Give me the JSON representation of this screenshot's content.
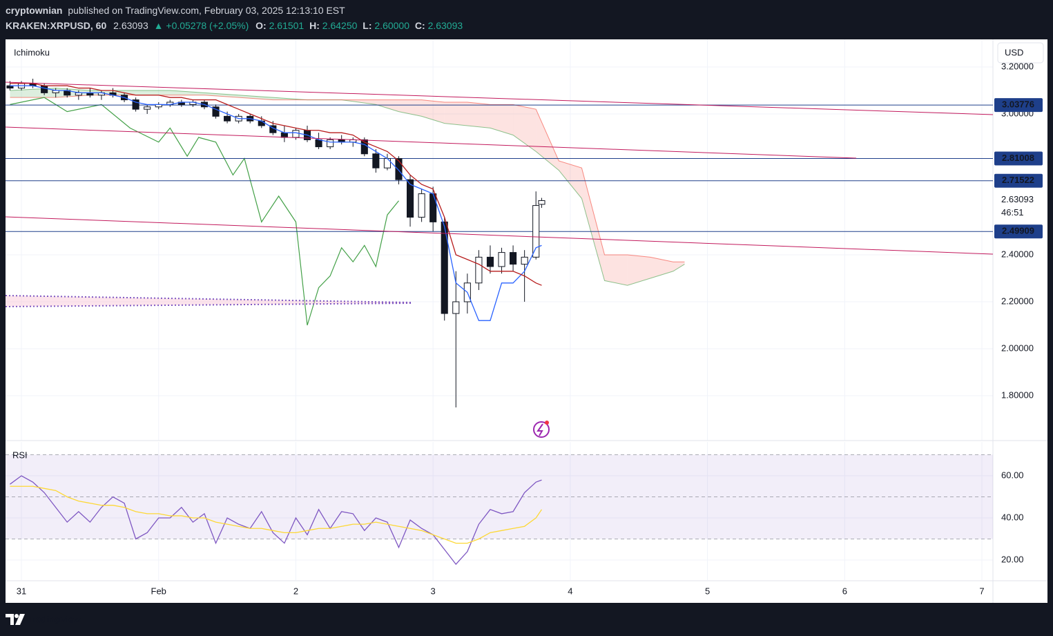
{
  "header": {
    "author": "cryptownian",
    "published": "published on TradingView.com, February 03, 2025 12:13:10 EST",
    "symbol": "KRAKEN:XRPUSD, 60",
    "last": "2.63093",
    "change": "▲ +0.05278 (+2.05%)",
    "o_label": "O:",
    "o": "2.61501",
    "h_label": "H:",
    "h": "2.64250",
    "l_label": "L:",
    "l": "2.60000",
    "c_label": "C:",
    "c": "2.63093"
  },
  "chart_data": [
    {
      "type": "candlestick",
      "title": "Ichimoku",
      "currency": "USD",
      "countdown": "46:51",
      "up_color": "#ffffff",
      "down_color": "#131722",
      "x": [
        -2,
        0,
        2,
        4,
        6,
        8,
        10,
        12,
        14,
        16,
        18,
        20,
        22,
        24,
        26,
        28,
        30,
        32,
        34,
        36,
        38,
        40,
        42,
        44,
        46,
        48,
        50,
        52,
        54,
        56,
        58,
        60,
        62,
        64,
        66,
        68,
        70,
        72,
        74,
        76,
        78,
        80,
        82,
        84,
        86,
        88,
        90,
        91
      ],
      "open": [
        3.12,
        3.11,
        3.13,
        3.12,
        3.09,
        3.1,
        3.08,
        3.09,
        3.08,
        3.09,
        3.08,
        3.06,
        3.02,
        3.03,
        3.04,
        3.05,
        3.04,
        3.05,
        3.03,
        2.99,
        2.97,
        2.99,
        2.97,
        2.95,
        2.92,
        2.9,
        2.93,
        2.89,
        2.86,
        2.89,
        2.88,
        2.89,
        2.83,
        2.77,
        2.81,
        2.72,
        2.56,
        2.66,
        2.54,
        2.15,
        2.2,
        2.28,
        2.39,
        2.35,
        2.41,
        2.36,
        2.39,
        2.61501
      ],
      "high": [
        3.14,
        3.14,
        3.15,
        3.13,
        3.11,
        3.11,
        3.1,
        3.11,
        3.1,
        3.11,
        3.09,
        3.07,
        3.04,
        3.05,
        3.06,
        3.06,
        3.06,
        3.06,
        3.04,
        3.01,
        3.0,
        3.0,
        2.99,
        2.97,
        2.95,
        2.94,
        2.95,
        2.92,
        2.9,
        2.91,
        2.9,
        2.9,
        2.85,
        2.83,
        2.82,
        2.74,
        2.68,
        2.69,
        2.56,
        2.33,
        2.32,
        2.42,
        2.44,
        2.43,
        2.44,
        2.42,
        2.67,
        2.6425
      ],
      "low": [
        3.1,
        3.1,
        3.11,
        3.08,
        3.07,
        3.07,
        3.06,
        3.07,
        3.06,
        3.07,
        3.05,
        3.01,
        3.0,
        3.02,
        3.03,
        3.03,
        3.03,
        3.02,
        2.98,
        2.96,
        2.96,
        2.96,
        2.94,
        2.91,
        2.88,
        2.89,
        2.88,
        2.85,
        2.85,
        2.87,
        2.86,
        2.82,
        2.75,
        2.76,
        2.7,
        2.52,
        2.54,
        2.5,
        2.12,
        1.75,
        2.15,
        2.25,
        2.32,
        2.32,
        2.33,
        2.2,
        2.38,
        2.6
      ],
      "close": [
        3.11,
        3.13,
        3.12,
        3.09,
        3.1,
        3.08,
        3.09,
        3.08,
        3.09,
        3.08,
        3.06,
        3.02,
        3.03,
        3.04,
        3.05,
        3.04,
        3.05,
        3.03,
        2.99,
        2.97,
        2.99,
        2.97,
        2.95,
        2.92,
        2.9,
        2.93,
        2.89,
        2.86,
        2.89,
        2.88,
        2.89,
        2.83,
        2.77,
        2.81,
        2.72,
        2.56,
        2.66,
        2.54,
        2.15,
        2.2,
        2.28,
        2.39,
        2.35,
        2.41,
        2.36,
        2.39,
        2.61,
        2.63093
      ],
      "lines": [
        {
          "color": "#2962ff",
          "values": [
            3.12,
            3.12,
            3.12,
            3.11,
            3.1,
            3.1,
            3.09,
            3.09,
            3.09,
            3.08,
            3.07,
            3.05,
            3.04,
            3.04,
            3.04,
            3.05,
            3.05,
            3.04,
            3.02,
            3.0,
            2.98,
            2.98,
            2.97,
            2.94,
            2.92,
            2.92,
            2.91,
            2.89,
            2.88,
            2.88,
            2.88,
            2.87,
            2.84,
            2.81,
            2.76,
            2.7,
            2.68,
            2.66,
            2.52,
            2.28,
            2.24,
            2.12,
            2.12,
            2.28,
            2.28,
            2.33,
            2.43,
            2.44
          ]
        },
        {
          "color": "#b71c1c",
          "values": [
            3.13,
            3.13,
            3.13,
            3.12,
            3.12,
            3.12,
            3.11,
            3.11,
            3.1,
            3.1,
            3.09,
            3.08,
            3.08,
            3.08,
            3.07,
            3.07,
            3.06,
            3.06,
            3.06,
            3.04,
            3.02,
            3.0,
            2.98,
            2.96,
            2.95,
            2.94,
            2.93,
            2.93,
            2.92,
            2.92,
            2.91,
            2.88,
            2.86,
            2.84,
            2.8,
            2.74,
            2.7,
            2.68,
            2.56,
            2.4,
            2.38,
            2.36,
            2.33,
            2.33,
            2.33,
            2.31,
            2.28,
            2.27
          ]
        }
      ],
      "lagging": {
        "color": "#43a047",
        "x": [
          -2,
          4,
          8,
          14,
          19,
          24,
          26,
          29,
          31,
          34,
          37,
          39,
          42,
          45,
          48,
          50,
          52,
          54,
          56,
          58,
          60,
          62,
          64,
          66
        ],
        "values": [
          3.04,
          3.07,
          3.01,
          3.04,
          2.94,
          2.88,
          2.94,
          2.82,
          2.9,
          2.88,
          2.74,
          2.81,
          2.54,
          2.65,
          2.54,
          2.1,
          2.26,
          2.31,
          2.43,
          2.37,
          2.44,
          2.35,
          2.57,
          2.63
        ]
      },
      "cloud": {
        "up_color": "#43a047",
        "down_color": "#f44336",
        "x": [
          -2,
          6,
          12,
          20,
          26,
          32,
          38,
          44,
          50,
          56,
          62,
          66,
          70,
          74,
          78,
          82,
          86,
          90,
          94,
          98,
          102,
          106,
          110,
          114,
          116
        ],
        "span_a": [
          3.1,
          3.11,
          3.1,
          3.1,
          3.1,
          3.09,
          3.08,
          3.07,
          3.06,
          3.06,
          3.04,
          3.01,
          2.99,
          2.96,
          2.95,
          2.94,
          2.91,
          2.84,
          2.76,
          2.64,
          2.29,
          2.27,
          2.3,
          2.33,
          2.36
        ],
        "span_b": [
          3.07,
          3.07,
          3.08,
          3.08,
          3.08,
          3.08,
          3.07,
          3.06,
          3.06,
          3.06,
          3.06,
          3.06,
          3.06,
          3.05,
          3.05,
          3.04,
          3.04,
          3.02,
          2.8,
          2.77,
          2.4,
          2.4,
          2.39,
          2.37,
          2.37
        ]
      },
      "levels": [
        3.03776,
        2.81008,
        2.71522,
        2.49909
      ],
      "level_color": "#1e3f8a",
      "xlim": [
        -2.78,
        169.93
      ],
      "ylim": [
        1.6088,
        3.3176
      ],
      "yticks": [
        {
          "value": 3.2,
          "label": "3.20000"
        },
        {
          "value": 3.0,
          "label": "3.00000"
        },
        {
          "value": 2.4,
          "label": "2.40000"
        },
        {
          "value": 2.2,
          "label": "2.20000"
        },
        {
          "value": 2.0,
          "label": "2.00000"
        },
        {
          "value": 1.8,
          "label": "1.80000"
        }
      ]
    },
    {
      "type": "line",
      "title": "RSI",
      "x": [
        -2,
        0,
        2,
        4,
        6,
        8,
        10,
        12,
        14,
        16,
        18,
        20,
        22,
        24,
        26,
        28,
        30,
        32,
        34,
        36,
        38,
        40,
        42,
        44,
        46,
        48,
        50,
        52,
        54,
        56,
        58,
        60,
        62,
        64,
        66,
        68,
        70,
        72,
        74,
        76,
        78,
        80,
        82,
        84,
        86,
        88,
        90,
        91
      ],
      "series": [
        {
          "color": "#7e57c2",
          "values": [
            56,
            60,
            57,
            52,
            45,
            38,
            43,
            38,
            45,
            50,
            47,
            30,
            33,
            40,
            40,
            45,
            38,
            42,
            28,
            40,
            37,
            35,
            43,
            33,
            28,
            40,
            32,
            44,
            35,
            43,
            42,
            34,
            40,
            38,
            26,
            39,
            35,
            32,
            25,
            18,
            24,
            37,
            44,
            42,
            43,
            52,
            57,
            58
          ]
        },
        {
          "color": "#fdd835",
          "values": [
            55,
            55,
            55,
            54,
            53,
            50,
            48,
            47,
            46,
            46,
            45,
            43,
            42,
            42,
            41,
            41,
            40,
            40,
            38,
            37,
            36,
            35,
            35,
            34,
            33,
            33,
            34,
            35,
            35,
            36,
            37,
            37,
            38,
            37,
            36,
            35,
            34,
            32,
            30,
            28,
            28,
            30,
            33,
            34,
            35,
            36,
            40,
            44
          ]
        }
      ],
      "band": [
        30,
        50,
        70
      ],
      "band_color": "#7e57c2",
      "xlim": [
        -2.78,
        169.93
      ],
      "ylim": [
        10.49,
        76.07
      ],
      "yticks": [
        {
          "value": 60,
          "label": "60.00"
        },
        {
          "value": 40,
          "label": "40.00"
        },
        {
          "value": 20,
          "label": "20.00"
        }
      ],
      "xticks": [
        {
          "value": 0,
          "label": "31"
        },
        {
          "value": 24,
          "label": "Feb"
        },
        {
          "value": 48,
          "label": "2"
        },
        {
          "value": 72,
          "label": "3"
        },
        {
          "value": 96,
          "label": "4"
        },
        {
          "value": 120,
          "label": "5"
        },
        {
          "value": 144,
          "label": "6"
        },
        {
          "value": 168,
          "label": "7"
        }
      ]
    }
  ],
  "footer": {
    "brand": "TradingView"
  }
}
